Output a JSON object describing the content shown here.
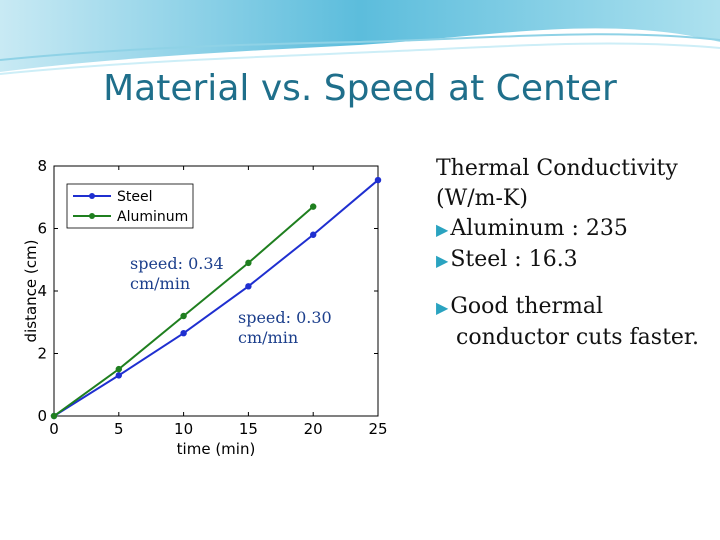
{
  "slide": {
    "title": "Material vs. Speed at Center"
  },
  "annotations": {
    "aluminum_speed_line1": "speed: 0.34",
    "aluminum_speed_line2": "cm/min",
    "steel_speed_line1": "speed: 0.30",
    "steel_speed_line2": "cm/min"
  },
  "notes": {
    "heading_line1": "Thermal Conductivity",
    "heading_line2": "(W/m-K)",
    "aluminum": "Aluminum : 235",
    "steel": "Steel : 16.3",
    "conclusion_line1": "Good thermal",
    "conclusion_line2": "conductor cuts faster."
  },
  "colors": {
    "title": "#1f6f8b",
    "steel": "#1f2fd0",
    "aluminum": "#1f7f1f",
    "annotation": "#1c3f8c",
    "bullet": "#2aa3c0"
  },
  "chart_data": {
    "type": "line",
    "xlabel": "time (min)",
    "ylabel": "distance (cm)",
    "xlim": [
      0,
      25
    ],
    "ylim": [
      0,
      8
    ],
    "xticks": [
      0,
      5,
      10,
      15,
      20,
      25
    ],
    "yticks": [
      0,
      2,
      4,
      6,
      8
    ],
    "legend_position": "top-left",
    "series": [
      {
        "name": "Steel",
        "color": "#1f2fd0",
        "x": [
          0,
          5,
          10,
          15,
          20,
          25
        ],
        "y": [
          0,
          1.3,
          2.65,
          4.15,
          5.8,
          7.55
        ]
      },
      {
        "name": "Aluminum",
        "color": "#1f7f1f",
        "x": [
          0,
          5,
          10,
          15,
          20
        ],
        "y": [
          0,
          1.5,
          3.2,
          4.9,
          6.7
        ]
      }
    ]
  }
}
